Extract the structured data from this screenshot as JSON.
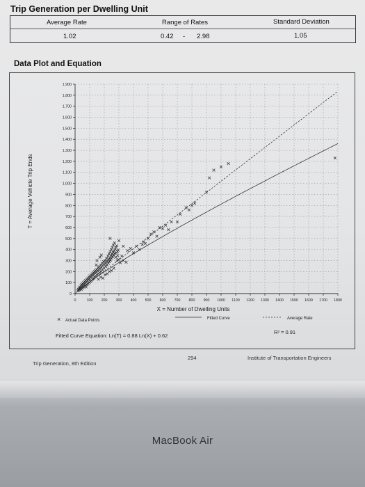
{
  "header": {
    "title": "Trip Generation per Dwelling Unit",
    "col_avg": "Average Rate",
    "col_range": "Range of Rates",
    "col_std": "Standard Deviation",
    "avg_value": "1.02",
    "range_low": "0.42",
    "range_sep": "-",
    "range_high": "2.98",
    "std_value": "1.05"
  },
  "section_title": "Data Plot and Equation",
  "chart_data": {
    "type": "scatter",
    "xlabel": "X = Number of Dwelling Units",
    "ylabel": "T = Average Vehicle Trip Ends",
    "xlim": [
      0,
      1800
    ],
    "ylim": [
      0,
      1900
    ],
    "x_ticks": [
      "0",
      "100",
      "200",
      "300",
      "400",
      "500",
      "600",
      "700",
      "800",
      "900",
      "1000",
      "1100",
      "1200",
      "1300",
      "1400",
      "1500",
      "1600",
      "1700",
      "1800"
    ],
    "y_ticks": [
      "0",
      "100",
      "200",
      "300",
      "400",
      "500",
      "600",
      "700",
      "800",
      "900",
      "1,000",
      "1,100",
      "1,200",
      "1,300",
      "1,400",
      "1,500",
      "1,600",
      "1,700",
      "1,800",
      "1,900"
    ],
    "grid": true,
    "series": [
      {
        "name": "Actual Data Points",
        "marker": "x",
        "points": [
          [
            18,
            25
          ],
          [
            22,
            40
          ],
          [
            25,
            30
          ],
          [
            28,
            50
          ],
          [
            30,
            35
          ],
          [
            32,
            60
          ],
          [
            35,
            45
          ],
          [
            38,
            55
          ],
          [
            40,
            70
          ],
          [
            42,
            38
          ],
          [
            45,
            80
          ],
          [
            48,
            65
          ],
          [
            50,
            90
          ],
          [
            52,
            48
          ],
          [
            55,
            75
          ],
          [
            58,
            100
          ],
          [
            60,
            58
          ],
          [
            62,
            85
          ],
          [
            65,
            110
          ],
          [
            68,
            70
          ],
          [
            70,
            95
          ],
          [
            72,
            120
          ],
          [
            75,
            60
          ],
          [
            78,
            105
          ],
          [
            80,
            130
          ],
          [
            82,
            80
          ],
          [
            85,
            115
          ],
          [
            88,
            140
          ],
          [
            90,
            90
          ],
          [
            92,
            125
          ],
          [
            95,
            150
          ],
          [
            98,
            100
          ],
          [
            100,
            135
          ],
          [
            102,
            160
          ],
          [
            105,
            112
          ],
          [
            108,
            145
          ],
          [
            110,
            170
          ],
          [
            112,
            120
          ],
          [
            115,
            155
          ],
          [
            118,
            180
          ],
          [
            120,
            130
          ],
          [
            122,
            165
          ],
          [
            125,
            190
          ],
          [
            128,
            140
          ],
          [
            130,
            175
          ],
          [
            132,
            200
          ],
          [
            135,
            150
          ],
          [
            138,
            185
          ],
          [
            140,
            210
          ],
          [
            142,
            160
          ],
          [
            145,
            195
          ],
          [
            148,
            220
          ],
          [
            150,
            170
          ],
          [
            155,
            205
          ],
          [
            158,
            235
          ],
          [
            160,
            180
          ],
          [
            162,
            215
          ],
          [
            165,
            245
          ],
          [
            168,
            190
          ],
          [
            170,
            225
          ],
          [
            175,
            260
          ],
          [
            178,
            200
          ],
          [
            180,
            240
          ],
          [
            185,
            275
          ],
          [
            188,
            215
          ],
          [
            190,
            255
          ],
          [
            195,
            290
          ],
          [
            198,
            230
          ],
          [
            200,
            268
          ],
          [
            205,
            300
          ],
          [
            210,
            245
          ],
          [
            212,
            280
          ],
          [
            215,
            320
          ],
          [
            218,
            260
          ],
          [
            220,
            295
          ],
          [
            225,
            340
          ],
          [
            228,
            275
          ],
          [
            230,
            310
          ],
          [
            232,
            360
          ],
          [
            235,
            290
          ],
          [
            238,
            325
          ],
          [
            240,
            380
          ],
          [
            242,
            305
          ],
          [
            245,
            345
          ],
          [
            248,
            400
          ],
          [
            250,
            320
          ],
          [
            252,
            360
          ],
          [
            255,
            420
          ],
          [
            258,
            335
          ],
          [
            260,
            375
          ],
          [
            262,
            440
          ],
          [
            265,
            350
          ],
          [
            268,
            390
          ],
          [
            270,
            460
          ],
          [
            272,
            365
          ],
          [
            275,
            405
          ],
          [
            278,
            330
          ],
          [
            280,
            420
          ],
          [
            282,
            370
          ],
          [
            285,
            435
          ],
          [
            288,
            300
          ],
          [
            290,
            380
          ],
          [
            292,
            345
          ],
          [
            295,
            395
          ],
          [
            298,
            310
          ],
          [
            160,
            130
          ],
          [
            175,
            150
          ],
          [
            190,
            140
          ],
          [
            205,
            170
          ],
          [
            220,
            180
          ],
          [
            235,
            200
          ],
          [
            250,
            210
          ],
          [
            265,
            230
          ],
          [
            150,
            300
          ],
          [
            170,
            330
          ],
          [
            145,
            260
          ],
          [
            310,
            280
          ],
          [
            330,
            300
          ],
          [
            350,
            285
          ],
          [
            320,
            340
          ],
          [
            360,
            390
          ],
          [
            380,
            410
          ],
          [
            400,
            370
          ],
          [
            420,
            430
          ],
          [
            440,
            400
          ],
          [
            460,
            445
          ],
          [
            470,
            470
          ],
          [
            480,
            455
          ],
          [
            500,
            500
          ],
          [
            520,
            540
          ],
          [
            540,
            560
          ],
          [
            560,
            520
          ],
          [
            580,
            600
          ],
          [
            600,
            590
          ],
          [
            620,
            620
          ],
          [
            640,
            580
          ],
          [
            660,
            650
          ],
          [
            700,
            650
          ],
          [
            720,
            720
          ],
          [
            760,
            780
          ],
          [
            780,
            760
          ],
          [
            800,
            800
          ],
          [
            820,
            820
          ],
          [
            900,
            920
          ],
          [
            920,
            1050
          ],
          [
            950,
            1120
          ],
          [
            1000,
            1150
          ],
          [
            1050,
            1180
          ],
          [
            1780,
            1230
          ],
          [
            300,
            480
          ],
          [
            240,
            500
          ],
          [
            180,
            350
          ],
          [
            330,
            430
          ]
        ]
      }
    ],
    "fitted_curve_label": "Fitted Curve",
    "average_rate_label": "Average Rate",
    "equation": "Fitted Curve Equation: Ln(T) = 0.88 Ln(X) + 0.62",
    "r_squared": "R² = 0.91",
    "fitted_curve": {
      "a": 0.88,
      "b": 0.62
    },
    "average_rate": 1.02
  },
  "footer": {
    "left": "Trip Generation, 8th Edition",
    "center": "294",
    "right": "Institute of Transportation Engineers"
  },
  "laptop_label": "MacBook Air",
  "colors": {
    "paper": "#e6e7e9",
    "ink": "#222222",
    "grid": "#9a9a9a",
    "bezel": "#a4a8ad"
  }
}
